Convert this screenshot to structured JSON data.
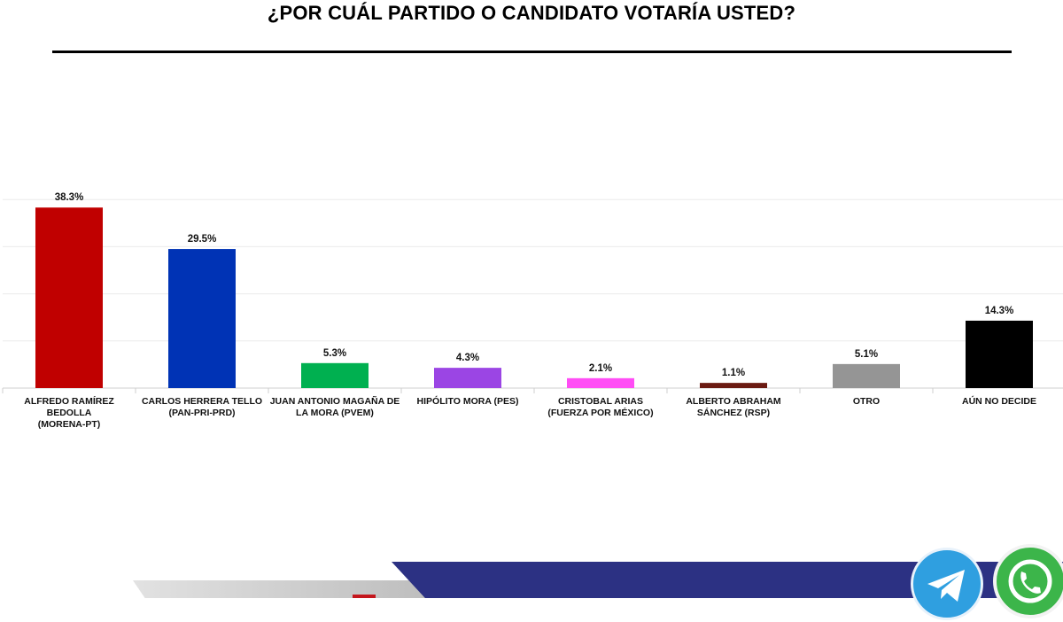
{
  "page": {
    "title": "¿POR CUÁL PARTIDO O CANDIDATO VOTARÍA USTED?"
  },
  "chart_data": {
    "type": "bar",
    "title": "¿POR CUÁL PARTIDO O CANDIDATO VOTARÍA USTED?",
    "xlabel": "",
    "ylabel": "",
    "ylim": [
      0,
      45
    ],
    "grid": true,
    "legend": "none",
    "value_suffix": "%",
    "categories": [
      [
        "ALFREDO RAMÍREZ BEDOLLA",
        "(MORENA-PT)"
      ],
      [
        "CARLOS HERRERA TELLO",
        "(PAN-PRI-PRD)"
      ],
      [
        "JUAN ANTONIO MAGAÑA DE",
        "LA MORA (PVEM)"
      ],
      [
        "HIPÓLITO MORA (PES)"
      ],
      [
        "CRISTOBAL ARIAS",
        "(FUERZA POR MÉXICO)"
      ],
      [
        "ALBERTO ABRAHAM",
        "SÁNCHEZ (RSP)"
      ],
      [
        "OTRO"
      ],
      [
        "AÚN NO DECIDE"
      ]
    ],
    "values": [
      38.3,
      29.5,
      5.3,
      4.3,
      2.1,
      1.1,
      5.1,
      14.3
    ],
    "colors": [
      "#c00000",
      "#0033b5",
      "#00b050",
      "#9b45e4",
      "#ff4df5",
      "#6b1a12",
      "#959595",
      "#000000"
    ]
  },
  "footer": {
    "icons": [
      "telegram-icon",
      "whatsapp-icon"
    ],
    "band_color": "#2c3183"
  }
}
